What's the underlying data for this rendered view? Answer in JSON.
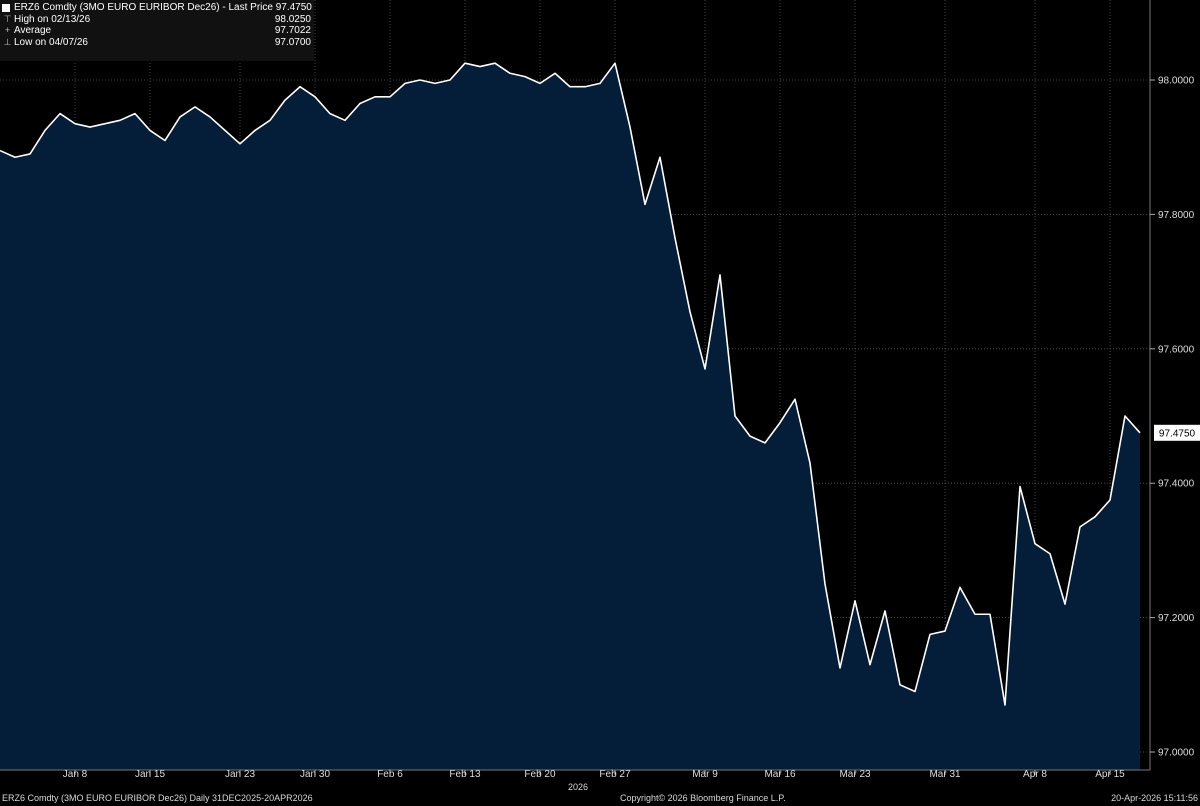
{
  "legend": {
    "title": "ERZ6 Comdty (3MO EURO EURIBOR  Dec26) - Last Price 97.4750",
    "high_label": "High on 02/13/26",
    "high_value": "98.0250",
    "average_label": "Average",
    "average_value": "97.7022",
    "low_label": "Low on 04/07/26",
    "low_value": "97.0700"
  },
  "footer": {
    "left": "ERZ6 Comdty (3MO EURO EURIBOR  Dec26) Daily 31DEC2025-20APR2026",
    "middle": "Copyright© 2026 Bloomberg Finance L.P.",
    "right": "20-Apr-2026 15:11:56"
  },
  "year_label": "2026",
  "colors": {
    "background": "#000000",
    "area_fill": "#041e3a",
    "line": "#ffffff",
    "grid": "#555555"
  },
  "chart_data": {
    "type": "area",
    "title": "ERZ6 Comdty (3MO EURO EURIBOR  Dec26) - Last Price 97.4750",
    "ylim": [
      97.0,
      98.1
    ],
    "yticks": [
      97.0,
      97.2,
      97.4,
      97.6,
      97.8,
      98.0
    ],
    "ytick_labels": [
      "97.0000",
      "97.2000",
      "97.4000",
      "97.6000",
      "97.8000",
      "98.0000"
    ],
    "xtick_labels": [
      "Jan 8",
      "Jan 15",
      "Jan 23",
      "Jan 30",
      "Feb 6",
      "Feb 13",
      "Feb 20",
      "Feb 27",
      "Mar 9",
      "Mar 16",
      "Mar 23",
      "Mar 31",
      "Apr 8",
      "Apr 15"
    ],
    "xtick_index": [
      5,
      10,
      16,
      21,
      26,
      31,
      36,
      41,
      47,
      52,
      57,
      63,
      69,
      74
    ],
    "last_price_label": "97.4750",
    "grid": true,
    "series": [
      {
        "values": [
          97.895,
          97.885,
          97.89,
          97.925,
          97.95,
          97.935,
          97.93,
          97.935,
          97.94,
          97.95,
          97.925,
          97.91,
          97.945,
          97.96,
          97.945,
          97.925,
          97.905,
          97.925,
          97.94,
          97.97,
          97.99,
          97.975,
          97.95,
          97.94,
          97.965,
          97.975,
          97.975,
          97.995,
          98.0,
          97.995,
          98.0,
          98.025,
          98.02,
          98.025,
          98.01,
          98.005,
          97.995,
          98.01,
          97.99,
          97.99,
          97.995,
          98.025,
          97.93,
          97.815,
          97.885,
          97.765,
          97.655,
          97.57,
          97.71,
          97.5,
          97.47,
          97.46,
          97.49,
          97.525,
          97.43,
          97.25,
          97.125,
          97.225,
          97.13,
          97.21,
          97.1,
          97.09,
          97.175,
          97.18,
          97.245,
          97.205,
          97.205,
          97.07,
          97.395,
          97.31,
          97.295,
          97.22,
          97.335,
          97.35,
          97.375,
          97.5,
          97.475
        ]
      }
    ]
  }
}
